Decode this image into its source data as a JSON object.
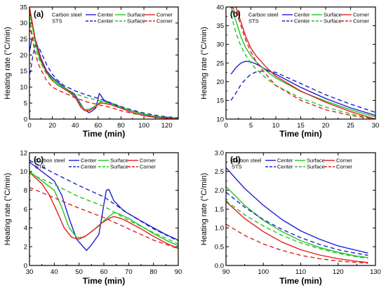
{
  "chart_data": [
    {
      "type": "line",
      "panel_label": "(a)",
      "xlabel": "Time (min)",
      "ylabel": "Heating rate (°C/min)",
      "xlim": [
        0,
        130
      ],
      "ylim": [
        0,
        35
      ],
      "xticks": [
        0,
        20,
        40,
        60,
        80,
        100,
        120
      ],
      "yticks": [
        0,
        5,
        10,
        15,
        20,
        25,
        30,
        35
      ],
      "legend": {
        "position": "top-right",
        "group_labels": [
          "Carbon steel",
          "STS"
        ]
      },
      "series": [
        {
          "name": "Center",
          "group": "Carbon steel",
          "color": "#1f1fcf",
          "dash": "solid",
          "x": [
            0,
            2,
            4,
            6,
            8,
            10,
            15,
            20,
            25,
            30,
            35,
            40,
            45,
            48,
            52,
            55,
            58,
            60,
            61,
            62,
            65,
            70,
            80,
            90,
            100,
            110,
            120,
            130
          ],
          "y": [
            21,
            25,
            25.5,
            24,
            21.5,
            19,
            15,
            13,
            11.5,
            10,
            8.8,
            7.5,
            4.5,
            3,
            2,
            2.6,
            3.5,
            6.5,
            8,
            7.6,
            6,
            5,
            3.6,
            2.5,
            1.5,
            0.8,
            0.4,
            0.3
          ]
        },
        {
          "name": "Surface",
          "group": "Carbon steel",
          "color": "#22c622",
          "dash": "solid",
          "x": [
            0,
            2,
            5,
            8,
            10,
            15,
            20,
            25,
            30,
            35,
            40,
            45,
            48,
            52,
            55,
            58,
            60,
            62,
            65,
            70,
            80,
            90,
            100,
            110,
            120,
            130
          ],
          "y": [
            34,
            30,
            24,
            20,
            18,
            14.5,
            12.5,
            11,
            9.8,
            8.5,
            7,
            4.2,
            3,
            3,
            3.6,
            4.2,
            4.8,
            5.3,
            5.5,
            5.2,
            3.8,
            2.4,
            1.4,
            0.7,
            0.3,
            0.2
          ]
        },
        {
          "name": "Corner",
          "group": "Carbon steel",
          "color": "#e01f1f",
          "dash": "solid",
          "x": [
            0,
            2,
            5,
            8,
            10,
            15,
            20,
            25,
            30,
            35,
            40,
            45,
            48,
            52,
            55,
            58,
            60,
            62,
            65,
            70,
            80,
            90,
            100,
            110,
            120,
            130
          ],
          "y": [
            35,
            31,
            25,
            21,
            18.5,
            14.5,
            12,
            10.5,
            9.5,
            8.3,
            6.8,
            3.6,
            2.7,
            2.6,
            3.2,
            3.8,
            4.6,
            5,
            4.9,
            4.6,
            3.4,
            2,
            1.1,
            0.5,
            0.2,
            0.1
          ]
        },
        {
          "name": "Center",
          "group": "STS",
          "color": "#1f1fcf",
          "dash": "dashed",
          "x": [
            0,
            1,
            3,
            5,
            8,
            10,
            15,
            20,
            25,
            30,
            40,
            50,
            60,
            70,
            80,
            90,
            100,
            110,
            120,
            130
          ],
          "y": [
            14,
            15,
            20,
            23,
            22.5,
            21,
            17,
            14,
            12,
            10.5,
            8.8,
            7.5,
            6.5,
            5.2,
            3.9,
            2.8,
            1.9,
            1.2,
            0.7,
            0.4
          ]
        },
        {
          "name": "Surface",
          "group": "STS",
          "color": "#22c622",
          "dash": "dashed",
          "x": [
            0,
            2,
            5,
            8,
            10,
            15,
            20,
            25,
            30,
            40,
            50,
            60,
            70,
            80,
            90,
            100,
            110,
            120,
            130
          ],
          "y": [
            32,
            27,
            22,
            19,
            17.5,
            14,
            12,
            10.5,
            9.8,
            7.9,
            6.7,
            5.9,
            4.9,
            3.6,
            2.5,
            1.6,
            0.9,
            0.5,
            0.3
          ]
        },
        {
          "name": "Corner",
          "group": "STS",
          "color": "#e01f1f",
          "dash": "dashed",
          "x": [
            0,
            2,
            5,
            8,
            10,
            15,
            20,
            25,
            30,
            40,
            50,
            60,
            70,
            80,
            90,
            100,
            110,
            120,
            130
          ],
          "y": [
            30,
            26,
            20.5,
            17,
            15.5,
            12,
            10,
            9,
            8.3,
            6.6,
            5.4,
            4.5,
            3.7,
            2.6,
            1.8,
            1.1,
            0.6,
            0.3,
            0.15
          ]
        }
      ]
    },
    {
      "type": "line",
      "panel_label": "(b)",
      "xlabel": "Time (min)",
      "ylabel": "Heating rate (°C/min)",
      "xlim": [
        0,
        30
      ],
      "ylim": [
        10,
        40
      ],
      "xticks": [
        0,
        5,
        10,
        15,
        20,
        25,
        30
      ],
      "yticks": [
        10,
        15,
        20,
        25,
        30,
        35,
        40
      ],
      "legend": {
        "position": "top-right",
        "group_labels": [
          "Carbon steel",
          "STS"
        ]
      },
      "series": [
        {
          "name": "Center",
          "group": "Carbon steel",
          "color": "#1f1fcf",
          "dash": "solid",
          "x": [
            1,
            2,
            3,
            4,
            5,
            6,
            8,
            10,
            15,
            20,
            25,
            30
          ],
          "y": [
            22,
            23.8,
            25,
            25.5,
            25.3,
            24.8,
            23.3,
            22,
            18.5,
            15.5,
            13,
            11
          ]
        },
        {
          "name": "Surface",
          "group": "Carbon steel",
          "color": "#22c622",
          "dash": "solid",
          "x": [
            1,
            2,
            3,
            4,
            5,
            6,
            8,
            10,
            15,
            20,
            25,
            30
          ],
          "y": [
            40,
            36.3,
            32,
            29,
            27,
            25.4,
            23,
            21,
            17.4,
            14.8,
            12.5,
            10.6
          ]
        },
        {
          "name": "Corner",
          "group": "Carbon steel",
          "color": "#e01f1f",
          "dash": "solid",
          "x": [
            1,
            2,
            3,
            4,
            5,
            6,
            8,
            10,
            15,
            20,
            25,
            30
          ],
          "y": [
            40,
            40,
            36,
            32,
            29,
            27,
            24,
            21.5,
            17.5,
            14.5,
            12,
            10
          ]
        },
        {
          "name": "Center",
          "group": "STS",
          "color": "#1f1fcf",
          "dash": "dashed",
          "x": [
            1,
            2,
            3,
            4,
            5,
            6,
            8,
            10,
            15,
            20,
            25,
            30
          ],
          "y": [
            15,
            17,
            19.2,
            20.8,
            22,
            22.6,
            23,
            22.5,
            19.5,
            16.5,
            14,
            11.8
          ]
        },
        {
          "name": "Surface",
          "group": "STS",
          "color": "#22c622",
          "dash": "dashed",
          "x": [
            1,
            2,
            3,
            4,
            5,
            6,
            8,
            10,
            15,
            20,
            25,
            30
          ],
          "y": [
            38,
            33,
            29.5,
            27,
            25,
            23.4,
            21,
            19,
            15.6,
            13.2,
            11.4,
            10
          ]
        },
        {
          "name": "Corner",
          "group": "STS",
          "color": "#e01f1f",
          "dash": "dashed",
          "x": [
            1,
            2,
            3,
            4,
            5,
            6,
            8,
            10,
            15,
            20,
            25,
            30
          ],
          "y": [
            40,
            39,
            35,
            31,
            28,
            25.5,
            22,
            19,
            15,
            12.5,
            11,
            10
          ]
        }
      ]
    },
    {
      "type": "line",
      "panel_label": "(c)",
      "xlabel": "Time (min)",
      "ylabel": "Heating rate (°C/min)",
      "xlim": [
        30,
        90
      ],
      "ylim": [
        0,
        12
      ],
      "xticks": [
        30,
        40,
        50,
        60,
        70,
        80,
        90
      ],
      "yticks": [
        0,
        2,
        4,
        6,
        8,
        10,
        12
      ],
      "legend": {
        "position": "top-left",
        "group_labels": [
          "Carbon steel",
          "STS"
        ]
      },
      "series": [
        {
          "name": "Center",
          "group": "Carbon steel",
          "color": "#1f1fcf",
          "dash": "solid",
          "x": [
            30,
            35,
            40,
            43,
            46,
            49,
            52,
            53,
            55,
            58,
            60,
            61,
            62,
            64,
            68,
            72,
            76,
            80,
            85,
            90
          ],
          "y": [
            11,
            10,
            9,
            7.5,
            5,
            2.8,
            1.9,
            1.6,
            2.2,
            3.3,
            6.5,
            8,
            8.1,
            6.9,
            5.8,
            5.2,
            4.6,
            4,
            3.3,
            2.7
          ]
        },
        {
          "name": "Surface",
          "group": "Carbon steel",
          "color": "#22c622",
          "dash": "solid",
          "x": [
            30,
            35,
            40,
            43,
            46,
            49,
            52,
            55,
            58,
            61,
            64,
            65,
            67,
            70,
            75,
            80,
            85,
            90
          ],
          "y": [
            10,
            9,
            8,
            6.2,
            4,
            3,
            3,
            3.6,
            4.2,
            5,
            5.6,
            5.6,
            5.4,
            5,
            4.2,
            3.4,
            2.7,
            2.1
          ]
        },
        {
          "name": "Corner",
          "group": "Carbon steel",
          "color": "#e01f1f",
          "dash": "solid",
          "x": [
            30,
            35,
            38,
            41,
            44,
            47,
            50,
            53,
            56,
            59,
            62,
            64,
            67,
            70,
            75,
            80,
            85,
            90
          ],
          "y": [
            9.9,
            8.7,
            7.5,
            5.8,
            4,
            3,
            2.8,
            3.2,
            3.8,
            4.5,
            5,
            5.2,
            5,
            4.6,
            3.9,
            3.1,
            2.4,
            1.8
          ]
        },
        {
          "name": "Center",
          "group": "STS",
          "color": "#1f1fcf",
          "dash": "dashed",
          "x": [
            30,
            40,
            50,
            60,
            70,
            80,
            90
          ],
          "y": [
            11.2,
            9.8,
            8.5,
            7.3,
            5.5,
            3.9,
            2.6
          ]
        },
        {
          "name": "Surface",
          "group": "STS",
          "color": "#22c622",
          "dash": "dashed",
          "x": [
            30,
            40,
            50,
            60,
            70,
            80,
            90
          ],
          "y": [
            9.8,
            8.6,
            7.3,
            6.3,
            4.8,
            3.5,
            2.3
          ]
        },
        {
          "name": "Corner",
          "group": "STS",
          "color": "#e01f1f",
          "dash": "dashed",
          "x": [
            30,
            40,
            50,
            60,
            70,
            80,
            90
          ],
          "y": [
            8.3,
            7.2,
            6.1,
            5.1,
            3.9,
            2.7,
            1.8
          ]
        }
      ]
    },
    {
      "type": "line",
      "panel_label": "(d)",
      "xlabel": "Time (min)",
      "ylabel": "Heating rate (°C/min)",
      "xlim": [
        90,
        130
      ],
      "ylim": [
        0.0,
        3.0
      ],
      "xticks": [
        90,
        100,
        110,
        120,
        130
      ],
      "yticks": [
        0.0,
        0.5,
        1.0,
        1.5,
        2.0,
        2.5,
        3.0
      ],
      "yticks_format": "0.1",
      "legend": {
        "position": "top-left",
        "group_labels": [
          "Carbon steel",
          "STS"
        ]
      },
      "series": [
        {
          "name": "Center",
          "group": "Carbon steel",
          "color": "#1f1fcf",
          "dash": "solid",
          "x": [
            90,
            95,
            100,
            105,
            110,
            115,
            120,
            125,
            128
          ],
          "y": [
            2.6,
            2.05,
            1.6,
            1.22,
            0.92,
            0.7,
            0.52,
            0.4,
            0.33
          ]
        },
        {
          "name": "Surface",
          "group": "Carbon steel",
          "color": "#22c622",
          "dash": "solid",
          "x": [
            90,
            95,
            100,
            105,
            110,
            115,
            120,
            125,
            128
          ],
          "y": [
            2.1,
            1.6,
            1.2,
            0.9,
            0.66,
            0.48,
            0.35,
            0.25,
            0.21
          ]
        },
        {
          "name": "Corner",
          "group": "Carbon steel",
          "color": "#e01f1f",
          "dash": "solid",
          "x": [
            90,
            95,
            100,
            105,
            110,
            115,
            120,
            125,
            128
          ],
          "y": [
            1.7,
            1.25,
            0.9,
            0.62,
            0.42,
            0.28,
            0.18,
            0.11,
            0.08
          ]
        },
        {
          "name": "Center",
          "group": "STS",
          "color": "#1f1fcf",
          "dash": "dashed",
          "x": [
            90,
            95,
            100,
            105,
            110,
            115,
            120,
            125,
            128
          ],
          "y": [
            1.95,
            1.55,
            1.22,
            0.96,
            0.74,
            0.56,
            0.42,
            0.32,
            0.27
          ]
        },
        {
          "name": "Surface",
          "group": "STS",
          "color": "#22c622",
          "dash": "dashed",
          "x": [
            90,
            95,
            100,
            105,
            110,
            115,
            120,
            125,
            128
          ],
          "y": [
            1.72,
            1.35,
            1.05,
            0.8,
            0.6,
            0.45,
            0.32,
            0.23,
            0.19
          ]
        },
        {
          "name": "Corner",
          "group": "STS",
          "color": "#e01f1f",
          "dash": "dashed",
          "x": [
            90,
            95,
            100,
            105,
            110,
            115,
            120,
            125,
            128
          ],
          "y": [
            1.1,
            0.8,
            0.57,
            0.4,
            0.27,
            0.18,
            0.12,
            0.08,
            0.06
          ]
        }
      ]
    }
  ]
}
